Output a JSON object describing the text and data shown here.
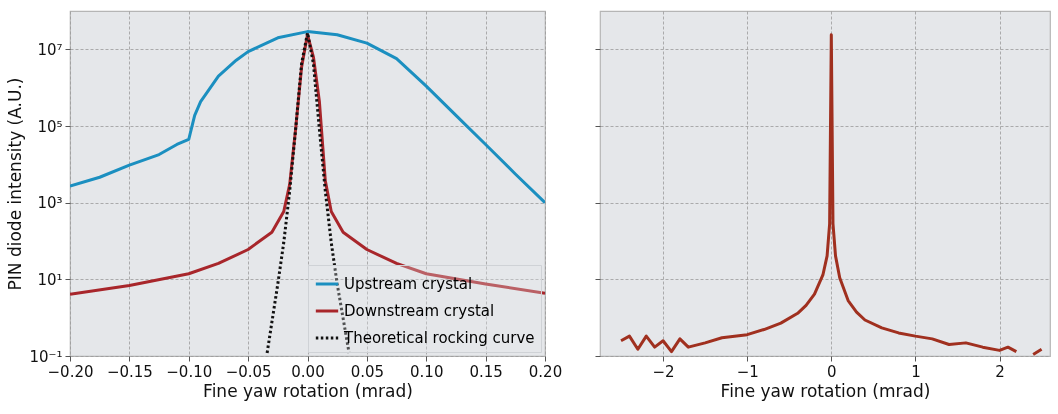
{
  "chart_data": [
    {
      "type": "line",
      "xlabel": "Fine yaw rotation (mrad)",
      "ylabel": "PIN diode intensity (A.U.)",
      "log": "y",
      "grid": true,
      "legend": "bottom right",
      "xlim": [
        -0.2,
        0.2
      ],
      "xticks": [
        {
          "value": -0.2,
          "label": "−0.20"
        },
        {
          "value": -0.15,
          "label": "−0.15"
        },
        {
          "value": -0.1,
          "label": "−0.10"
        },
        {
          "value": -0.05,
          "label": "−0.05"
        },
        {
          "value": 0,
          "label": "0.00"
        },
        {
          "value": 0.05,
          "label": "0.05"
        },
        {
          "value": 0.1,
          "label": "0.10"
        },
        {
          "value": 0.15,
          "label": "0.15"
        },
        {
          "value": 0.2,
          "label": "0.20"
        }
      ],
      "ylim": [
        0.1,
        100000000
      ],
      "yticks": [
        {
          "value": 0.1,
          "label": "10⁻¹"
        },
        {
          "value": 10,
          "label": "10¹"
        },
        {
          "value": 1000,
          "label": "10³"
        },
        {
          "value": 100000,
          "label": "10⁵"
        },
        {
          "value": 10000000,
          "label": "10⁷"
        }
      ],
      "series": [
        {
          "name": "Upstream crystal",
          "color": "#1b8fc0",
          "line_style": "solid",
          "x": [
            -0.2,
            -0.175,
            -0.15,
            -0.125,
            -0.11,
            -0.1,
            -0.095,
            -0.09,
            -0.08,
            -0.075,
            -0.06,
            -0.05,
            -0.025,
            0,
            0.025,
            0.05,
            0.075,
            0.1,
            0.125,
            0.15,
            0.175,
            0.2
          ],
          "values": [
            2700,
            4600,
            9500,
            18000,
            33000,
            45000,
            190000,
            430000,
            1200000,
            2000000,
            5200000,
            8700000,
            20000000,
            29000000,
            24000000,
            14500000,
            5700000,
            1100000,
            190000,
            33000,
            5600,
            1000
          ]
        },
        {
          "name": "Downstream crystal",
          "color": "#a8262b",
          "line_style": "solid",
          "x": [
            -0.2,
            -0.15,
            -0.1,
            -0.075,
            -0.05,
            -0.03,
            -0.02,
            -0.015,
            -0.01,
            -0.005,
            0,
            0.005,
            0.01,
            0.015,
            0.02,
            0.03,
            0.05,
            0.075,
            0.1,
            0.15,
            0.2
          ],
          "values": [
            4.1,
            6.9,
            14,
            26,
            60,
            170,
            590,
            3000,
            83000,
            3400000,
            24000000,
            6300000,
            440000,
            3700,
            590,
            170,
            60,
            26,
            14,
            7.6,
            4.3
          ]
        },
        {
          "name": "Theoretical rocking curve",
          "color": "#111111",
          "line_style": "dotted",
          "x": [
            -0.034,
            -0.025,
            -0.02,
            -0.015,
            -0.01,
            -0.005,
            0,
            0.005,
            0.01,
            0.015,
            0.02,
            0.025,
            0.035
          ],
          "values": [
            0.12,
            7.6,
            91,
            2000,
            83000,
            4200000,
            27000000,
            4200000,
            83000,
            2000,
            91,
            7.6,
            0.12
          ]
        }
      ]
    },
    {
      "type": "line",
      "xlabel": "Fine yaw rotation (mrad)",
      "log": "y",
      "grid": true,
      "tick_labels": "x",
      "xlim": [
        -2.75,
        2.6
      ],
      "xticks": [
        {
          "value": -2,
          "label": "−2"
        },
        {
          "value": -1,
          "label": "−1"
        },
        0,
        1,
        2
      ],
      "ylim": [
        0.1,
        100000000
      ],
      "yticks": [
        0.1,
        10,
        1000,
        100000,
        10000000
      ],
      "series": [
        {
          "color": "#a0301f",
          "line_style": "solid",
          "x": [
            -2.5,
            -2.4,
            -2.3,
            -2.2,
            -2.1,
            -2.0,
            -1.9,
            -1.8,
            -1.7,
            -1.5,
            -1.3,
            -1.0,
            -0.8,
            -0.6,
            -0.4,
            -0.3,
            -0.2,
            -0.1,
            -0.05,
            -0.02,
            0,
            0.02,
            0.05,
            0.1,
            0.2,
            0.3,
            0.4,
            0.6,
            0.8,
            1.0,
            1.2,
            1.4,
            1.6,
            1.8,
            2.0,
            2.1,
            2.2,
            2.3,
            2.4,
            2.5
          ],
          "values": [
            0.25,
            0.33,
            0.15,
            0.33,
            0.17,
            0.25,
            0.13,
            0.28,
            0.17,
            0.22,
            0.3,
            0.36,
            0.49,
            0.72,
            1.3,
            2.1,
            4.1,
            13,
            41,
            280,
            24000000,
            280,
            41,
            11,
            2.8,
            1.4,
            0.87,
            0.54,
            0.4,
            0.33,
            0.28,
            0.2,
            0.22,
            0.17,
            0.14,
            0.17,
            0.13,
            null,
            0.11,
            0.15
          ]
        }
      ]
    }
  ]
}
